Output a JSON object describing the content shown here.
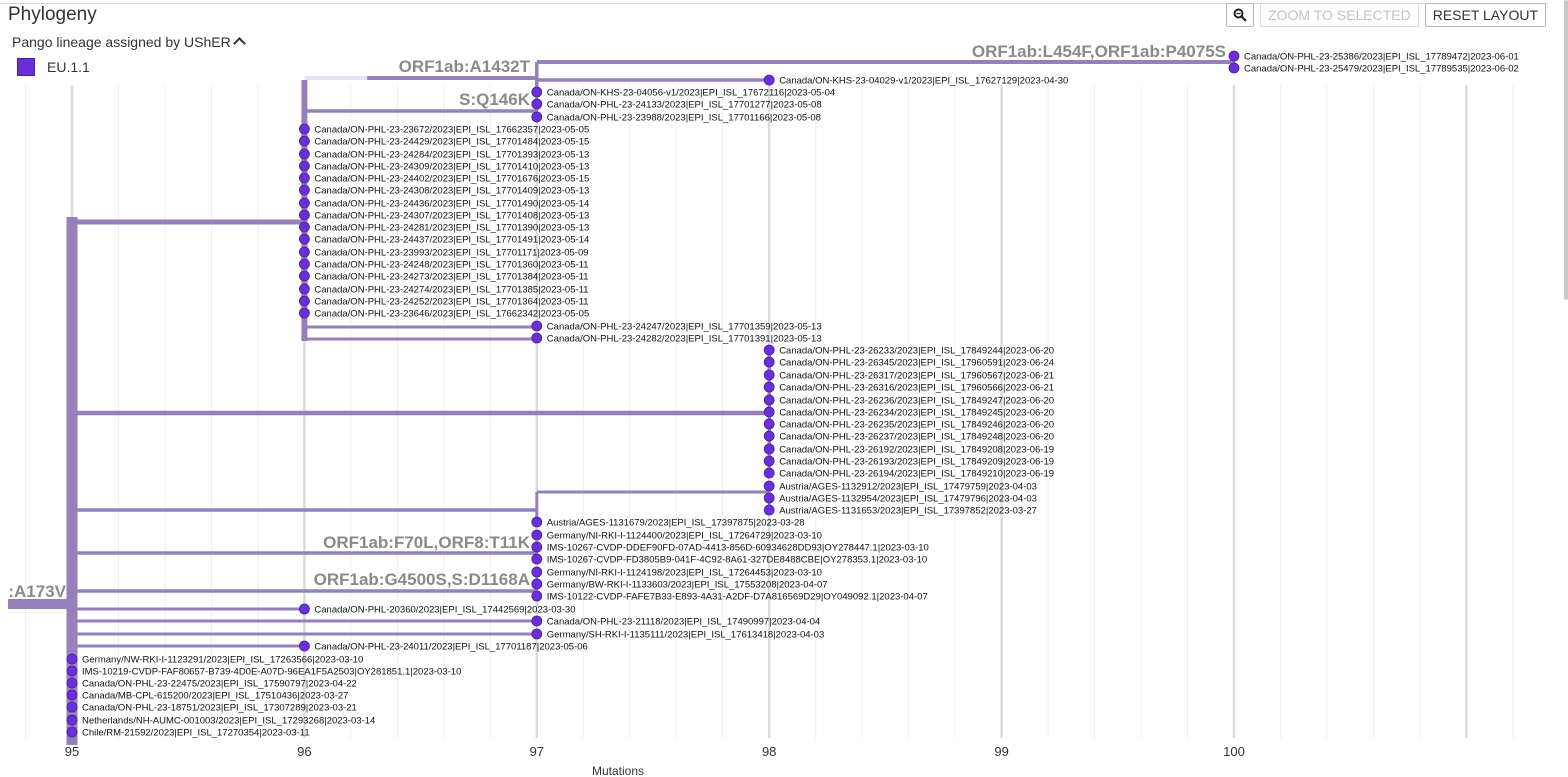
{
  "panel": {
    "title": "Phylogeny"
  },
  "toolbar": {
    "zoom_icon": "magnifier-icon",
    "zoom_selected": "ZOOM TO SELECTED",
    "reset_layout": "RESET LAYOUT"
  },
  "legend": {
    "title": "Pango lineage assigned by UShER",
    "items": [
      {
        "label": "EU.1.1",
        "color": "#6a2fd8"
      }
    ]
  },
  "colors": {
    "branch": "#9580bb",
    "branch_light": "#e6e2f0",
    "node": "#6a2fd8",
    "node_stroke": "#4a1fa0",
    "grid_major": "#dcdcdc",
    "grid_minor": "#efefef",
    "mutation_label": "#8a8a8a"
  },
  "axis": {
    "label": "Mutations",
    "ticks": [
      95,
      96,
      97,
      98,
      99,
      100
    ]
  },
  "mutation_labels": [
    {
      "text": ":A173V",
      "x": 95
    },
    {
      "text": "ORF1ab:A1432T",
      "x": 97
    },
    {
      "text": "ORF1ab:L454F,ORF1ab:P4075S",
      "x": 100
    },
    {
      "text": "S:Q146K",
      "x": 97
    },
    {
      "text": "ORF1ab:F70L,ORF8:T11K",
      "x": 97
    },
    {
      "text": "ORF1ab:G4500S,S:D1168A",
      "x": 97
    }
  ],
  "leaves": [
    {
      "label": "Canada/ON-PHL-23-25386/2023|EPI_ISL_17789472|2023-06-01",
      "x": 100
    },
    {
      "label": "Canada/ON-PHL-23-25479/2023|EPI_ISL_17789535|2023-06-02",
      "x": 100
    },
    {
      "label": "Canada/ON-KHS-23-04029-v1/2023|EPI_ISL_17627129|2023-04-30",
      "x": 98
    },
    {
      "label": "Canada/ON-KHS-23-04056-v1/2023|EPI_ISL_17672116|2023-05-04",
      "x": 97
    },
    {
      "label": "Canada/ON-PHL-23-24133/2023|EPI_ISL_17701277|2023-05-08",
      "x": 97
    },
    {
      "label": "Canada/ON-PHL-23-23988/2023|EPI_ISL_17701166|2023-05-08",
      "x": 97
    },
    {
      "label": "Canada/ON-PHL-23-23672/2023|EPI_ISL_17662357|2023-05-05",
      "x": 96
    },
    {
      "label": "Canada/ON-PHL-23-24429/2023|EPI_ISL_17701484|2023-05-15",
      "x": 96
    },
    {
      "label": "Canada/ON-PHL-23-24284/2023|EPI_ISL_17701393|2023-05-13",
      "x": 96
    },
    {
      "label": "Canada/ON-PHL-23-24309/2023|EPI_ISL_17701410|2023-05-13",
      "x": 96
    },
    {
      "label": "Canada/ON-PHL-23-24402/2023|EPI_ISL_17701676|2023-05-15",
      "x": 96
    },
    {
      "label": "Canada/ON-PHL-23-24308/2023|EPI_ISL_17701409|2023-05-13",
      "x": 96
    },
    {
      "label": "Canada/ON-PHL-23-24436/2023|EPI_ISL_17701490|2023-05-14",
      "x": 96
    },
    {
      "label": "Canada/ON-PHL-23-24307/2023|EPI_ISL_17701408|2023-05-13",
      "x": 96
    },
    {
      "label": "Canada/ON-PHL-23-24281/2023|EPI_ISL_17701390|2023-05-13",
      "x": 96
    },
    {
      "label": "Canada/ON-PHL-23-24437/2023|EPI_ISL_17701491|2023-05-14",
      "x": 96
    },
    {
      "label": "Canada/ON-PHL-23-23993/2023|EPI_ISL_17701171|2023-05-09",
      "x": 96
    },
    {
      "label": "Canada/ON-PHL-23-24248/2023|EPI_ISL_17701360|2023-05-11",
      "x": 96
    },
    {
      "label": "Canada/ON-PHL-23-24273/2023|EPI_ISL_17701384|2023-05-11",
      "x": 96
    },
    {
      "label": "Canada/ON-PHL-23-24274/2023|EPI_ISL_17701385|2023-05-11",
      "x": 96
    },
    {
      "label": "Canada/ON-PHL-23-24252/2023|EPI_ISL_17701364|2023-05-11",
      "x": 96
    },
    {
      "label": "Canada/ON-PHL-23-23646/2023|EPI_ISL_17662342|2023-05-05",
      "x": 96
    },
    {
      "label": "Canada/ON-PHL-23-24247/2023|EPI_ISL_17701359|2023-05-13",
      "x": 97
    },
    {
      "label": "Canada/ON-PHL-23-24282/2023|EPI_ISL_17701391|2023-05-13",
      "x": 97
    },
    {
      "label": "Canada/ON-PHL-23-26233/2023|EPI_ISL_17849244|2023-06-20",
      "x": 98
    },
    {
      "label": "Canada/ON-PHL-23-26345/2023|EPI_ISL_17960591|2023-06-24",
      "x": 98
    },
    {
      "label": "Canada/ON-PHL-23-26317/2023|EPI_ISL_17960567|2023-06-21",
      "x": 98
    },
    {
      "label": "Canada/ON-PHL-23-26316/2023|EPI_ISL_17960566|2023-06-21",
      "x": 98
    },
    {
      "label": "Canada/ON-PHL-23-26236/2023|EPI_ISL_17849247|2023-06-20",
      "x": 98
    },
    {
      "label": "Canada/ON-PHL-23-26234/2023|EPI_ISL_17849245|2023-06-20",
      "x": 98
    },
    {
      "label": "Canada/ON-PHL-23-26235/2023|EPI_ISL_17849246|2023-06-20",
      "x": 98
    },
    {
      "label": "Canada/ON-PHL-23-26237/2023|EPI_ISL_17849248|2023-06-20",
      "x": 98
    },
    {
      "label": "Canada/ON-PHL-23-26192/2023|EPI_ISL_17849208|2023-06-19",
      "x": 98
    },
    {
      "label": "Canada/ON-PHL-23-26193/2023|EPI_ISL_17849209|2023-06-19",
      "x": 98
    },
    {
      "label": "Canada/ON-PHL-23-26194/2023|EPI_ISL_17849210|2023-06-19",
      "x": 98
    },
    {
      "label": "Austria/AGES-1132912/2023|EPI_ISL_17479759|2023-04-03",
      "x": 98
    },
    {
      "label": "Austria/AGES-1132954/2023|EPI_ISL_17479796|2023-04-03",
      "x": 98
    },
    {
      "label": "Austria/AGES-1131653/2023|EPI_ISL_17397852|2023-03-27",
      "x": 98
    },
    {
      "label": "Austria/AGES-1131679/2023|EPI_ISL_17397875|2023-03-28",
      "x": 97
    },
    {
      "label": "Germany/NI-RKI-I-1124400/2023|EPI_ISL_17264729|2023-03-10",
      "x": 97
    },
    {
      "label": "IMS-10267-CVDP-DDEF90FD-07AD-4413-856D-60934628DD93|OY278447.1|2023-03-10",
      "x": 97
    },
    {
      "label": "IMS-10267-CVDP-FD3805B9-041F-4C92-8A61-327DE8488CBE|OY278353.1|2023-03-10",
      "x": 97
    },
    {
      "label": "Germany/NI-RKI-I-1124198/2023|EPI_ISL_17264453|2023-03-10",
      "x": 97
    },
    {
      "label": "Germany/BW-RKI-I-1133603/2023|EPI_ISL_17553208|2023-04-07",
      "x": 97
    },
    {
      "label": "IMS-10122-CVDP-FAFE7B33-E893-4A31-A2DF-D7A816569D29|OY049092.1|2023-04-07",
      "x": 97
    },
    {
      "label": "Canada/ON-PHL-20360/2023|EPI_ISL_17442569|2023-03-30",
      "x": 96
    },
    {
      "label": "Canada/ON-PHL-23-21118/2023|EPI_ISL_17490997|2023-04-04",
      "x": 97
    },
    {
      "label": "Germany/SH-RKI-I-1135111/2023|EPI_ISL_17613418|2023-04-03",
      "x": 97
    },
    {
      "label": "Canada/ON-PHL-23-24011/2023|EPI_ISL_17701187|2023-05-06",
      "x": 96
    },
    {
      "label": "Germany/NW-RKI-I-1123291/2023|EPI_ISL_17263566|2023-03-10",
      "x": 95
    },
    {
      "label": "IMS-10219-CVDP-FAF80657-B739-4D0E-A07D-96EA1F5A2503|OY281851.1|2023-03-10",
      "x": 95
    },
    {
      "label": "Canada/ON-PHL-23-22475/2023|EPI_ISL_17590797|2023-04-22",
      "x": 95
    },
    {
      "label": "Canada/MB-CPL-615200/2023|EPI_ISL_17510436|2023-03-27",
      "x": 95
    },
    {
      "label": "Canada/ON-PHL-23-18751/2023|EPI_ISL_17307289|2023-03-21",
      "x": 95
    },
    {
      "label": "Netherlands/NH-AUMC-001003/2023|EPI_ISL_17293268|2023-03-14",
      "x": 95
    },
    {
      "label": "Chile/RM-21592/2023|EPI_ISL_17270354|2023-03-11",
      "x": 95
    }
  ]
}
